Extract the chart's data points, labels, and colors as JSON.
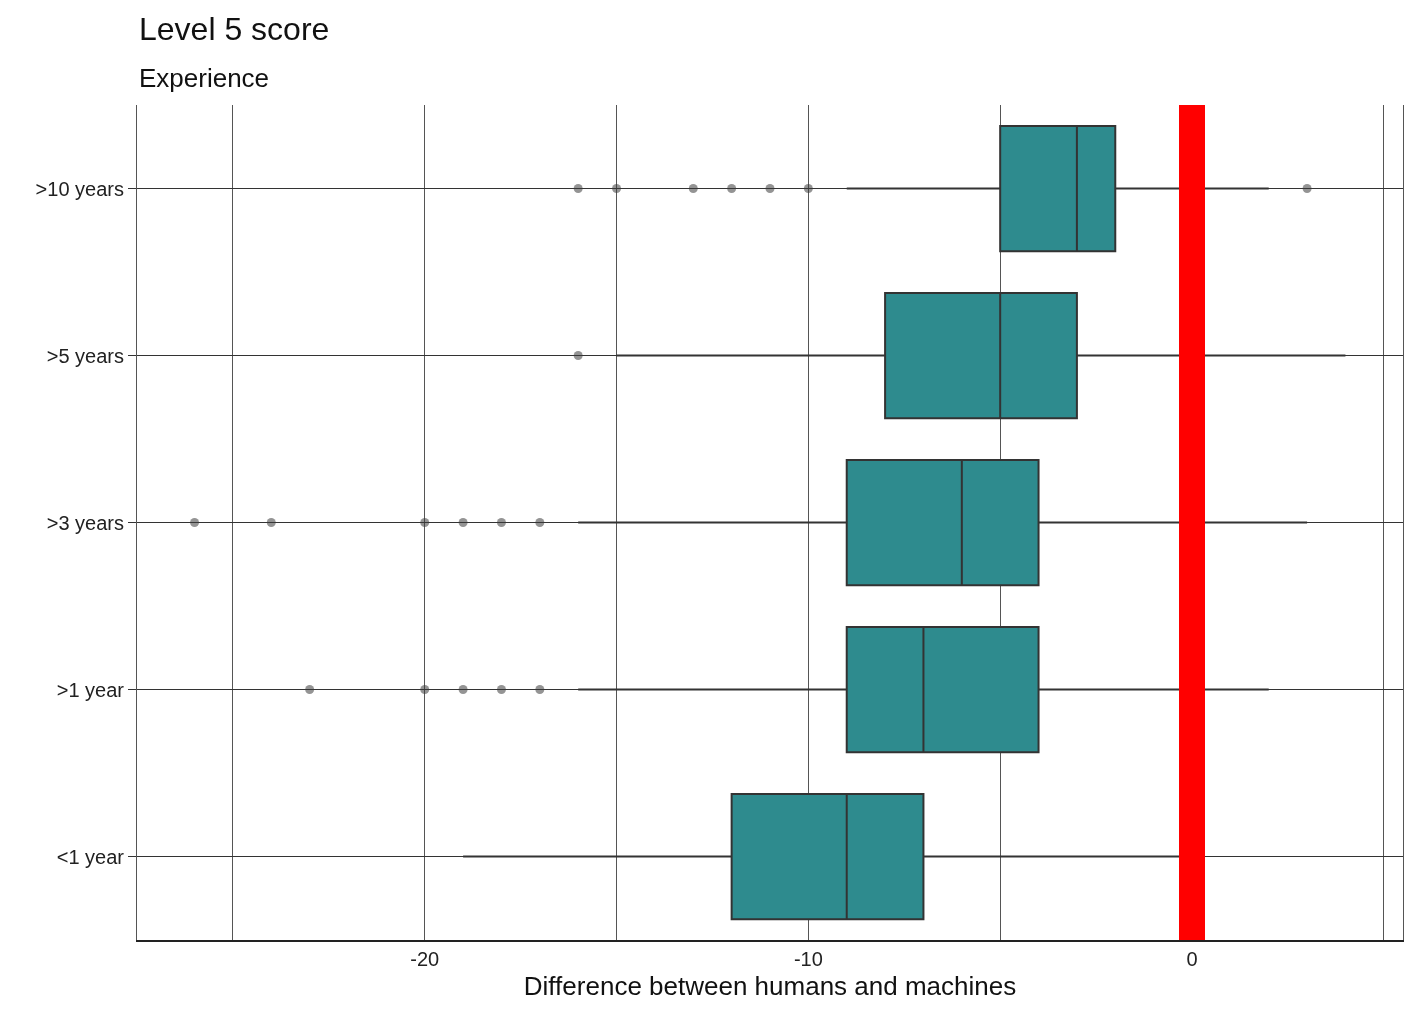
{
  "chart_data": {
    "type": "box",
    "title": "Level 5 score",
    "subtitle": "Experience",
    "xlabel": "Difference between humans and machines",
    "orientation": "horizontal",
    "categories": [
      ">10 years",
      ">5 years",
      ">3 years",
      ">1 year",
      "<1 year"
    ],
    "color": "#2e8b8e",
    "boxes": [
      {
        "low": -9,
        "q1": -5,
        "median": -3,
        "q3": -2,
        "high": 2,
        "outliers": [
          -16,
          -15,
          -13,
          -12,
          -11,
          -10,
          3
        ]
      },
      {
        "low": -15,
        "q1": -8,
        "median": -5,
        "q3": -3,
        "high": 4,
        "outliers": [
          -16
        ]
      },
      {
        "low": -16,
        "q1": -9,
        "median": -6,
        "q3": -4,
        "high": 3,
        "outliers": [
          -26,
          -24,
          -20,
          -19,
          -18,
          -17
        ]
      },
      {
        "low": -16,
        "q1": -9,
        "median": -7,
        "q3": -4,
        "high": 2,
        "outliers": [
          -23,
          -20,
          -19,
          -18,
          -17
        ]
      },
      {
        "low": -19,
        "q1": -12,
        "median": -9,
        "q3": -7,
        "high": 0
      }
    ],
    "xlim": [
      -27.5,
      5.5
    ],
    "xticks": [
      {
        "value": -25,
        "label": null
      },
      -20,
      {
        "value": -15,
        "label": null
      },
      -10,
      {
        "value": -5,
        "label": null
      },
      0,
      {
        "value": 5,
        "label": null
      }
    ],
    "grid": true,
    "ref_lines": [
      {
        "axis": "x",
        "value": 0,
        "color": "#ff0000"
      }
    ]
  }
}
